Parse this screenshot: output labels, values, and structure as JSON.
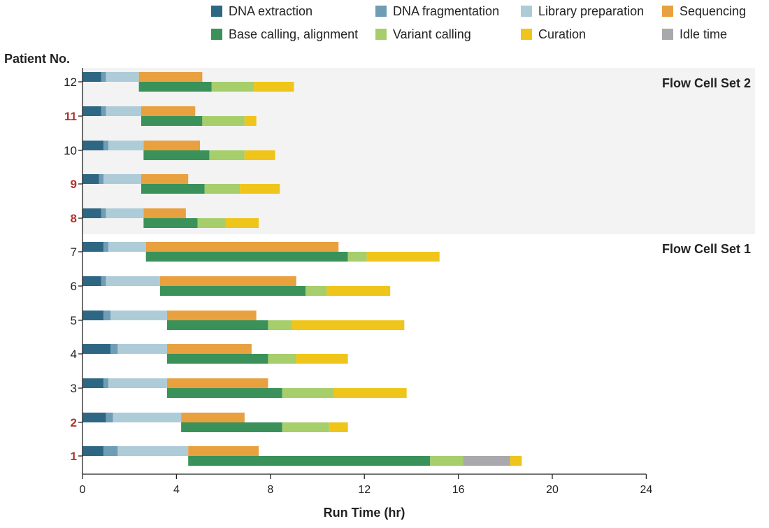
{
  "chart_data": {
    "type": "bar",
    "subtype": "gantt-stacked-horizontal",
    "xlabel": "Run Time (hr)",
    "ylabel": "Patient No.",
    "xlim": [
      0,
      24
    ],
    "xticks": [
      0,
      4,
      8,
      12,
      16,
      20,
      24
    ],
    "legend": [
      {
        "key": "dna_extraction",
        "label": "DNA extraction",
        "color": "#2e6784"
      },
      {
        "key": "dna_fragmentation",
        "label": "DNA fragmentation",
        "color": "#6f9db5"
      },
      {
        "key": "library_preparation",
        "label": "Library preparation",
        "color": "#aecbd8"
      },
      {
        "key": "sequencing",
        "label": "Sequencing",
        "color": "#e9a03f"
      },
      {
        "key": "base_calling_alignment",
        "label": "Base calling, alignment",
        "color": "#3a925a"
      },
      {
        "key": "variant_calling",
        "label": "Variant calling",
        "color": "#a6ce6b"
      },
      {
        "key": "curation",
        "label": "Curation",
        "color": "#efc51b"
      },
      {
        "key": "idle_time",
        "label": "Idle time",
        "color": "#a8a8ad"
      }
    ],
    "legend_placement": "top",
    "groups": [
      {
        "label": "Flow Cell Set 2",
        "patients": [
          "12",
          "11",
          "10",
          "9",
          "8"
        ],
        "shaded": true
      },
      {
        "label": "Flow Cell Set 1",
        "patients": [
          "7",
          "6",
          "5",
          "4",
          "3",
          "2",
          "1"
        ],
        "shaded": false
      }
    ],
    "patients": [
      {
        "id": "12",
        "highlight": false,
        "top": [
          {
            "phase": "dna_extraction",
            "start": 0,
            "end": 0.8
          },
          {
            "phase": "dna_fragmentation",
            "start": 0.8,
            "end": 1.0
          },
          {
            "phase": "library_preparation",
            "start": 1.0,
            "end": 2.4
          },
          {
            "phase": "sequencing",
            "start": 2.4,
            "end": 5.1
          }
        ],
        "bottom": [
          {
            "phase": "base_calling_alignment",
            "start": 2.4,
            "end": 5.5
          },
          {
            "phase": "variant_calling",
            "start": 5.5,
            "end": 7.3
          },
          {
            "phase": "curation",
            "start": 7.3,
            "end": 9.0
          }
        ]
      },
      {
        "id": "11",
        "highlight": true,
        "top": [
          {
            "phase": "dna_extraction",
            "start": 0,
            "end": 0.8
          },
          {
            "phase": "dna_fragmentation",
            "start": 0.8,
            "end": 1.0
          },
          {
            "phase": "library_preparation",
            "start": 1.0,
            "end": 2.5
          },
          {
            "phase": "sequencing",
            "start": 2.5,
            "end": 4.8
          }
        ],
        "bottom": [
          {
            "phase": "base_calling_alignment",
            "start": 2.5,
            "end": 5.1
          },
          {
            "phase": "variant_calling",
            "start": 5.1,
            "end": 6.9
          },
          {
            "phase": "curation",
            "start": 6.9,
            "end": 7.4
          }
        ]
      },
      {
        "id": "10",
        "highlight": false,
        "top": [
          {
            "phase": "dna_extraction",
            "start": 0,
            "end": 0.9
          },
          {
            "phase": "dna_fragmentation",
            "start": 0.9,
            "end": 1.1
          },
          {
            "phase": "library_preparation",
            "start": 1.1,
            "end": 2.6
          },
          {
            "phase": "sequencing",
            "start": 2.6,
            "end": 5.0
          }
        ],
        "bottom": [
          {
            "phase": "base_calling_alignment",
            "start": 2.6,
            "end": 5.4
          },
          {
            "phase": "variant_calling",
            "start": 5.4,
            "end": 6.9
          },
          {
            "phase": "curation",
            "start": 6.9,
            "end": 8.2
          }
        ]
      },
      {
        "id": "9",
        "highlight": true,
        "top": [
          {
            "phase": "dna_extraction",
            "start": 0,
            "end": 0.7
          },
          {
            "phase": "dna_fragmentation",
            "start": 0.7,
            "end": 0.9
          },
          {
            "phase": "library_preparation",
            "start": 0.9,
            "end": 2.5
          },
          {
            "phase": "sequencing",
            "start": 2.5,
            "end": 4.5
          }
        ],
        "bottom": [
          {
            "phase": "base_calling_alignment",
            "start": 2.5,
            "end": 5.2
          },
          {
            "phase": "variant_calling",
            "start": 5.2,
            "end": 6.7
          },
          {
            "phase": "curation",
            "start": 6.7,
            "end": 8.4
          }
        ]
      },
      {
        "id": "8",
        "highlight": true,
        "top": [
          {
            "phase": "dna_extraction",
            "start": 0,
            "end": 0.8
          },
          {
            "phase": "dna_fragmentation",
            "start": 0.8,
            "end": 1.0
          },
          {
            "phase": "library_preparation",
            "start": 1.0,
            "end": 2.6
          },
          {
            "phase": "sequencing",
            "start": 2.6,
            "end": 4.4
          }
        ],
        "bottom": [
          {
            "phase": "base_calling_alignment",
            "start": 2.6,
            "end": 4.9
          },
          {
            "phase": "variant_calling",
            "start": 4.9,
            "end": 6.1
          },
          {
            "phase": "curation",
            "start": 6.1,
            "end": 7.5
          }
        ]
      },
      {
        "id": "7",
        "highlight": false,
        "top": [
          {
            "phase": "dna_extraction",
            "start": 0,
            "end": 0.9
          },
          {
            "phase": "dna_fragmentation",
            "start": 0.9,
            "end": 1.1
          },
          {
            "phase": "library_preparation",
            "start": 1.1,
            "end": 2.7
          },
          {
            "phase": "sequencing",
            "start": 2.7,
            "end": 10.9
          }
        ],
        "bottom": [
          {
            "phase": "base_calling_alignment",
            "start": 2.7,
            "end": 11.3
          },
          {
            "phase": "variant_calling",
            "start": 11.3,
            "end": 12.1
          },
          {
            "phase": "curation",
            "start": 12.1,
            "end": 15.2
          }
        ]
      },
      {
        "id": "6",
        "highlight": false,
        "top": [
          {
            "phase": "dna_extraction",
            "start": 0,
            "end": 0.8
          },
          {
            "phase": "dna_fragmentation",
            "start": 0.8,
            "end": 1.0
          },
          {
            "phase": "library_preparation",
            "start": 1.0,
            "end": 3.3
          },
          {
            "phase": "sequencing",
            "start": 3.3,
            "end": 9.1
          }
        ],
        "bottom": [
          {
            "phase": "base_calling_alignment",
            "start": 3.3,
            "end": 9.5
          },
          {
            "phase": "variant_calling",
            "start": 9.5,
            "end": 10.4
          },
          {
            "phase": "curation",
            "start": 10.4,
            "end": 13.1
          }
        ]
      },
      {
        "id": "5",
        "highlight": false,
        "top": [
          {
            "phase": "dna_extraction",
            "start": 0,
            "end": 0.9
          },
          {
            "phase": "dna_fragmentation",
            "start": 0.9,
            "end": 1.2
          },
          {
            "phase": "library_preparation",
            "start": 1.2,
            "end": 3.6
          },
          {
            "phase": "sequencing",
            "start": 3.6,
            "end": 7.4
          }
        ],
        "bottom": [
          {
            "phase": "base_calling_alignment",
            "start": 3.6,
            "end": 7.9
          },
          {
            "phase": "variant_calling",
            "start": 7.9,
            "end": 8.9
          },
          {
            "phase": "curation",
            "start": 8.9,
            "end": 13.7
          }
        ]
      },
      {
        "id": "4",
        "highlight": false,
        "top": [
          {
            "phase": "dna_extraction",
            "start": 0,
            "end": 1.2
          },
          {
            "phase": "dna_fragmentation",
            "start": 1.2,
            "end": 1.5
          },
          {
            "phase": "library_preparation",
            "start": 1.5,
            "end": 3.6
          },
          {
            "phase": "sequencing",
            "start": 3.6,
            "end": 7.2
          }
        ],
        "bottom": [
          {
            "phase": "base_calling_alignment",
            "start": 3.6,
            "end": 7.9
          },
          {
            "phase": "variant_calling",
            "start": 7.9,
            "end": 9.1
          },
          {
            "phase": "curation",
            "start": 9.1,
            "end": 11.3
          }
        ]
      },
      {
        "id": "3",
        "highlight": false,
        "top": [
          {
            "phase": "dna_extraction",
            "start": 0,
            "end": 0.9
          },
          {
            "phase": "dna_fragmentation",
            "start": 0.9,
            "end": 1.1
          },
          {
            "phase": "library_preparation",
            "start": 1.1,
            "end": 3.6
          },
          {
            "phase": "sequencing",
            "start": 3.6,
            "end": 7.9
          }
        ],
        "bottom": [
          {
            "phase": "base_calling_alignment",
            "start": 3.6,
            "end": 8.5
          },
          {
            "phase": "variant_calling",
            "start": 8.5,
            "end": 10.7
          },
          {
            "phase": "curation",
            "start": 10.7,
            "end": 13.8
          }
        ]
      },
      {
        "id": "2",
        "highlight": true,
        "top": [
          {
            "phase": "dna_extraction",
            "start": 0,
            "end": 1.0
          },
          {
            "phase": "dna_fragmentation",
            "start": 1.0,
            "end": 1.3
          },
          {
            "phase": "library_preparation",
            "start": 1.3,
            "end": 4.2
          },
          {
            "phase": "sequencing",
            "start": 4.2,
            "end": 6.9
          }
        ],
        "bottom": [
          {
            "phase": "base_calling_alignment",
            "start": 4.2,
            "end": 8.5
          },
          {
            "phase": "variant_calling",
            "start": 8.5,
            "end": 10.5
          },
          {
            "phase": "curation",
            "start": 10.5,
            "end": 11.3
          }
        ]
      },
      {
        "id": "1",
        "highlight": true,
        "top": [
          {
            "phase": "dna_extraction",
            "start": 0,
            "end": 0.9
          },
          {
            "phase": "dna_fragmentation",
            "start": 0.9,
            "end": 1.5
          },
          {
            "phase": "library_preparation",
            "start": 1.5,
            "end": 4.5
          },
          {
            "phase": "sequencing",
            "start": 4.5,
            "end": 7.5
          }
        ],
        "bottom": [
          {
            "phase": "base_calling_alignment",
            "start": 4.5,
            "end": 14.8
          },
          {
            "phase": "variant_calling",
            "start": 14.8,
            "end": 16.2
          },
          {
            "phase": "idle_time",
            "start": 16.2,
            "end": 18.2
          },
          {
            "phase": "curation",
            "start": 18.2,
            "end": 18.7
          }
        ]
      }
    ],
    "colors": {
      "highlight_label": "#b5322a",
      "shaded_band": "#f2f3f2",
      "axis": "#222222"
    }
  }
}
